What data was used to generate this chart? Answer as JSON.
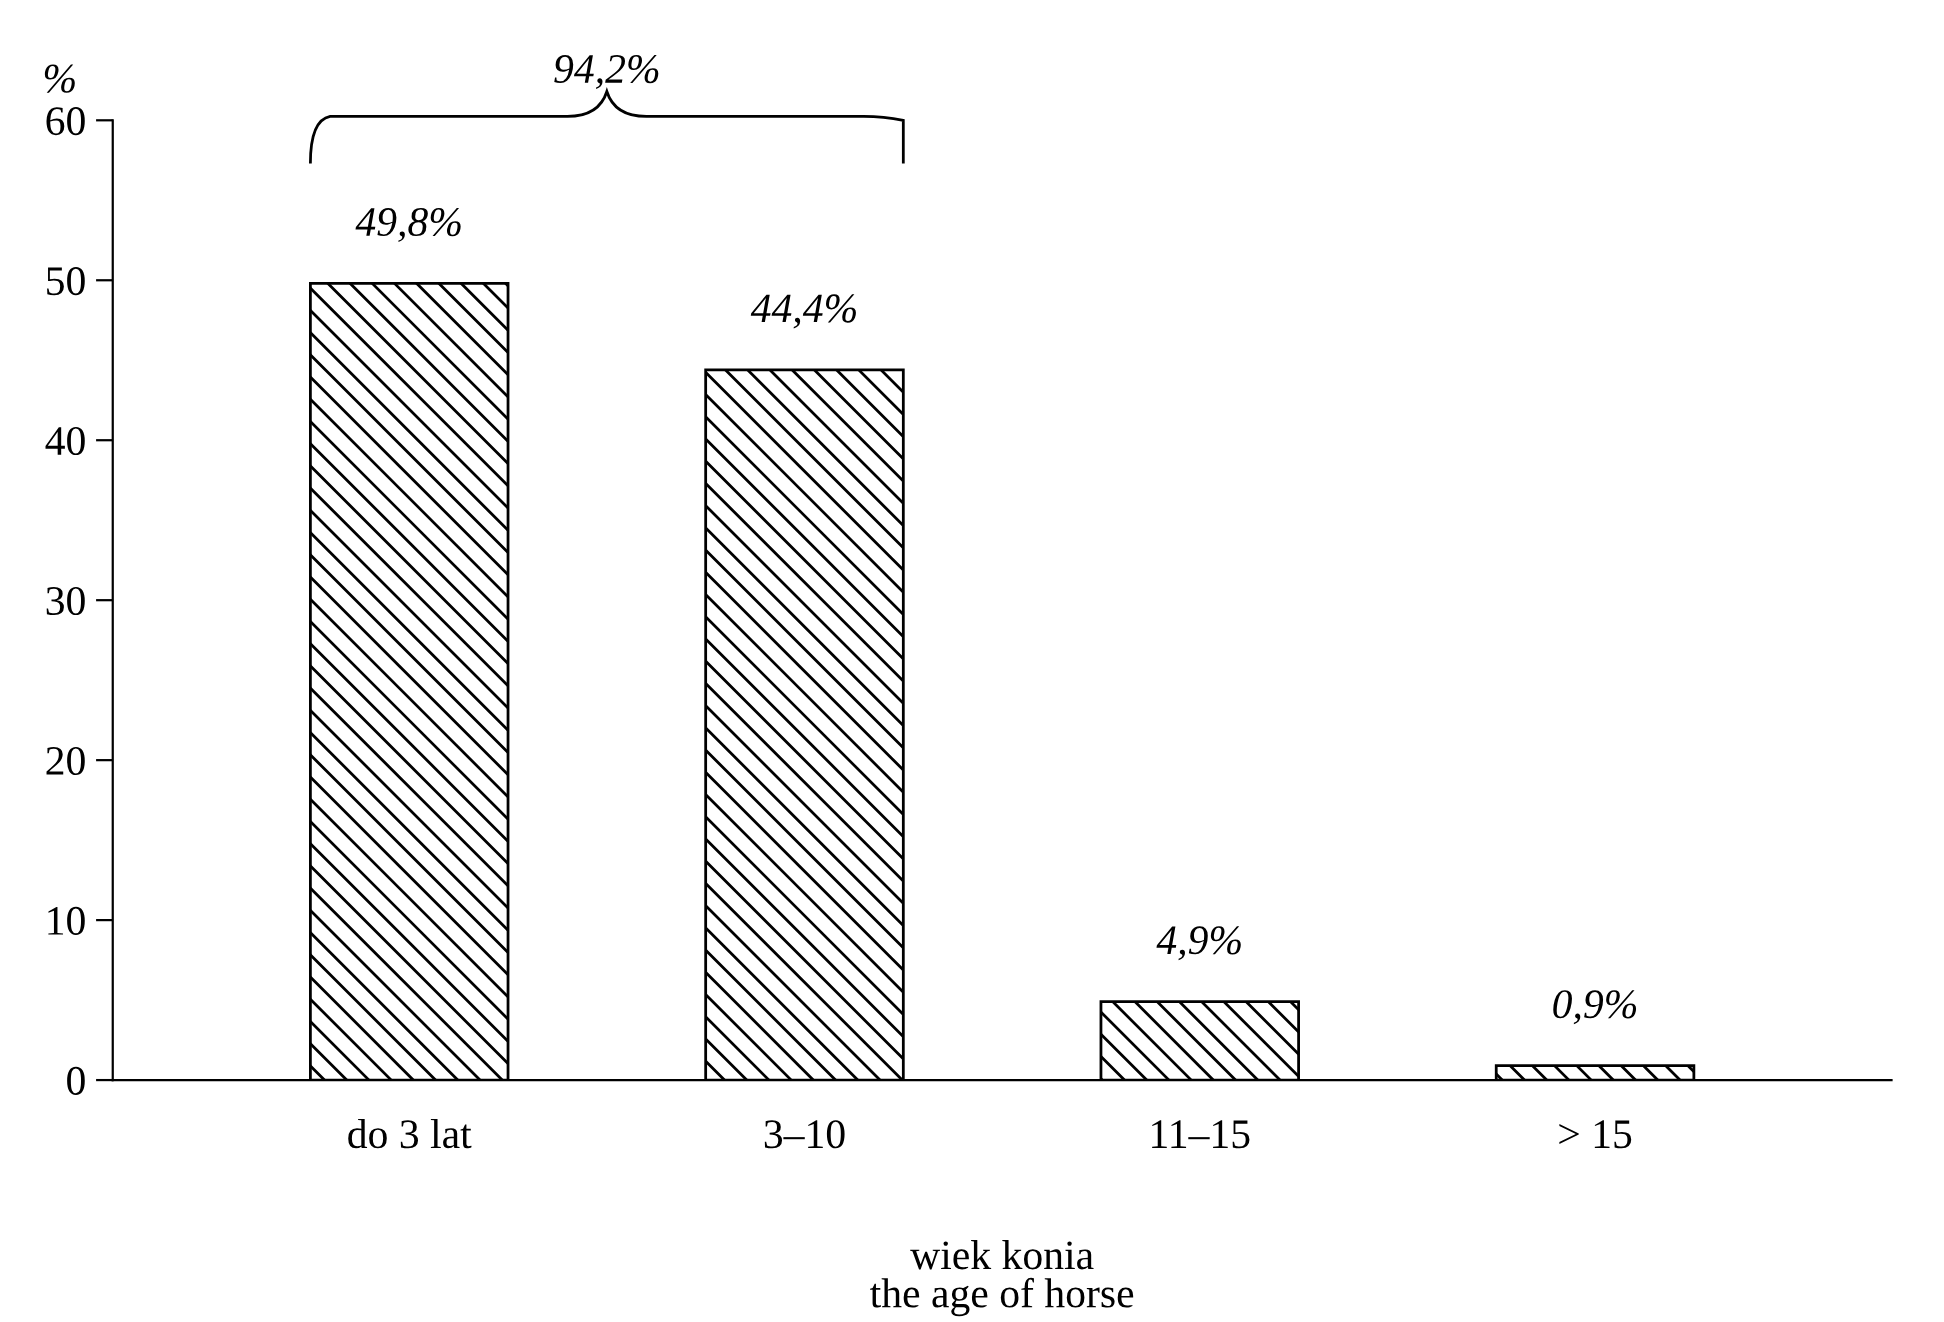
{
  "chart_data": {
    "type": "bar",
    "categories": [
      "do 3 lat",
      "3–10",
      "11–15",
      "> 15"
    ],
    "values": [
      49.8,
      44.4,
      4.9,
      0.9
    ],
    "value_labels": [
      "49,8%",
      "44,4%",
      "4,9%",
      "0,9%"
    ],
    "color": "#000000",
    "ylabel": "%",
    "xlabel": "wiek konia\nthe age of horse",
    "annotations": [
      "94,2%"
    ],
    "ylim": [
      0,
      60
    ],
    "yticks": [
      0,
      10,
      20,
      30,
      40,
      50,
      60
    ],
    "grid": false
  }
}
